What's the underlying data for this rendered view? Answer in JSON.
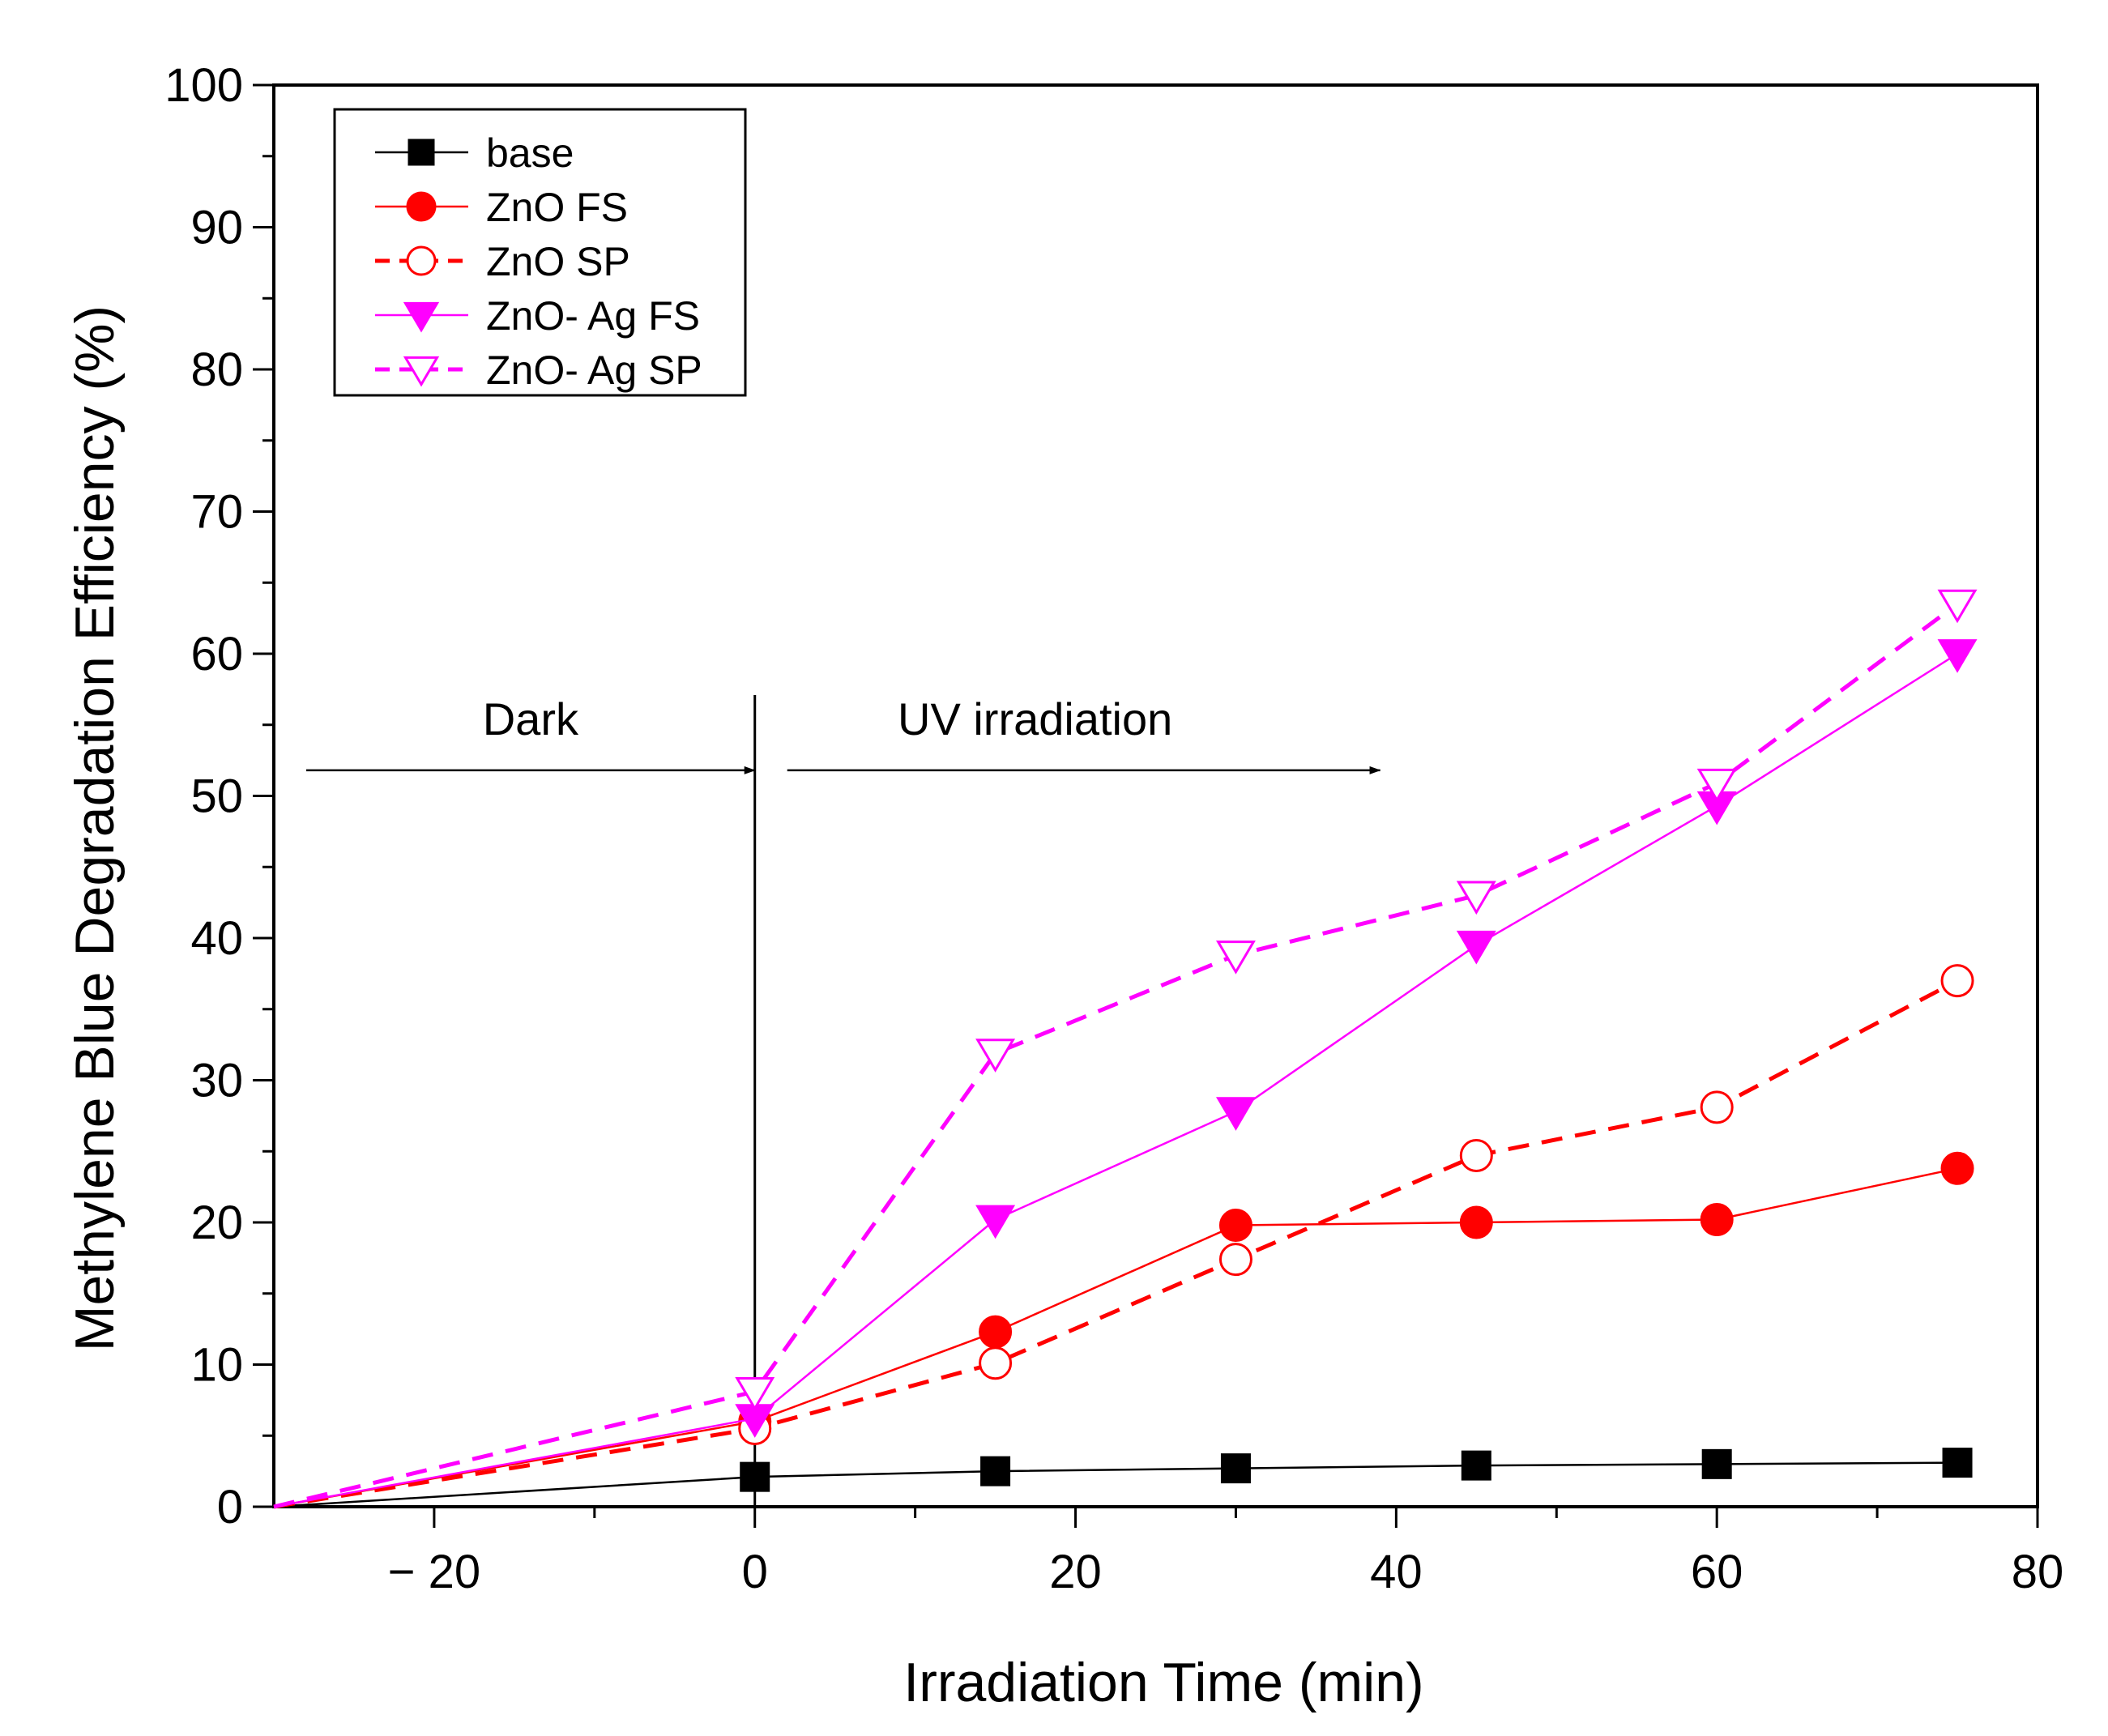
{
  "chart_data": {
    "type": "line",
    "title": "",
    "xlabel": "Irradiation Time (min)",
    "ylabel": "Methylene Blue Degradation Efficiency (%)",
    "xlim": [
      -30,
      80
    ],
    "ylim": [
      0,
      100
    ],
    "x_ticks": [
      -20,
      0,
      20,
      40,
      60,
      80
    ],
    "x_tick_labels": [
      "− 20",
      "0",
      "20",
      "40",
      "60",
      "80"
    ],
    "y_ticks": [
      0,
      10,
      20,
      30,
      40,
      50,
      60,
      70,
      80,
      90,
      100
    ],
    "y_tick_labels": [
      "0",
      "10",
      "20",
      "30",
      "40",
      "50",
      "60",
      "70",
      "80",
      "90",
      "100"
    ],
    "grid": false,
    "legend_position": "top-left",
    "x": [
      -30,
      0,
      15,
      30,
      45,
      60,
      75
    ],
    "series": [
      {
        "name": "base",
        "color": "#000000",
        "line": "solid",
        "marker": "square",
        "filled": true,
        "values": [
          0,
          2.1,
          2.5,
          2.7,
          2.9,
          3.0,
          3.1
        ]
      },
      {
        "name": "ZnO FS",
        "color": "#ff0000",
        "line": "solid",
        "marker": "circle",
        "filled": true,
        "values": [
          0,
          6.0,
          12.3,
          19.8,
          20.0,
          20.2,
          23.8
        ]
      },
      {
        "name": "ZnO SP",
        "color": "#ff0000",
        "line": "dashed",
        "marker": "circle",
        "filled": false,
        "values": [
          0,
          5.5,
          10.1,
          17.4,
          24.7,
          28.1,
          37.0
        ]
      },
      {
        "name": "ZnO- Ag FS",
        "color": "#ff00ff",
        "line": "solid",
        "marker": "triangle-down",
        "filled": true,
        "values": [
          0,
          6.2,
          20.2,
          27.8,
          39.5,
          49.3,
          60.0
        ]
      },
      {
        "name": "ZnO- Ag SP",
        "color": "#ff00ff",
        "line": "dashed",
        "marker": "triangle-down",
        "filled": false,
        "values": [
          0,
          8.1,
          31.9,
          38.8,
          43.0,
          50.9,
          63.5
        ]
      }
    ],
    "annotations": [
      {
        "text": "Dark",
        "arrow_from_x": -30,
        "arrow_to_x": 0,
        "y": 51.8
      },
      {
        "text": "UV irradiation",
        "arrow_from_x": 0,
        "arrow_to_x": 39,
        "y": 51.8
      }
    ],
    "divider_x": 0
  }
}
